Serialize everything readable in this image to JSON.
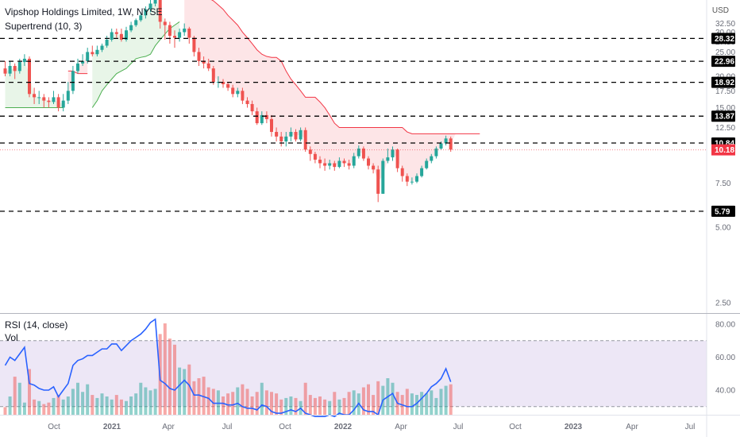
{
  "header": {
    "title": "Vipshop Holdings Limited, 1W, NYSE",
    "indicator": "Supertrend (10, 3)",
    "currency": "USD"
  },
  "rsi_panel": {
    "label": "RSI (14, close)",
    "vol_label": "Vol"
  },
  "colors": {
    "up": "#26a69a",
    "down": "#ef5350",
    "rsi_line": "#2962ff",
    "supertrend_up": "#4caf50",
    "supertrend_down": "#f23645",
    "level_line": "#000000",
    "price_line": "#f23645",
    "rsi_band": "#ede7f6"
  },
  "chart_data": [
    {
      "type": "candlestick",
      "title": "Vipshop Holdings Limited, 1W, NYSE",
      "scale": "log",
      "ylim": [
        2.5,
        35
      ],
      "y_ticks": [
        2.5,
        5.0,
        7.5,
        10.0,
        12.5,
        15.0,
        17.5,
        20.0,
        22.5,
        25.0,
        27.5,
        30.0,
        32.5
      ],
      "x_ticks": [
        "Oct",
        "2021",
        "Apr",
        "Jul",
        "Oct",
        "2022",
        "Apr",
        "Jul",
        "Oct",
        "2023",
        "Apr",
        "Jul"
      ],
      "horizontal_levels": [
        28.32,
        22.96,
        18.92,
        13.87,
        10.84,
        5.79
      ],
      "last_price": 10.18,
      "candles": [
        [
          21.5,
          20.5,
          23.0,
          20.0
        ],
        [
          20.5,
          22.0,
          23.0,
          20.0
        ],
        [
          22.0,
          21.0,
          22.5,
          19.5
        ],
        [
          21.0,
          22.8,
          23.5,
          20.5
        ],
        [
          22.8,
          23.5,
          24.5,
          22.0
        ],
        [
          23.5,
          17.0,
          24.0,
          16.5
        ],
        [
          17.0,
          16.5,
          18.0,
          15.5
        ],
        [
          16.5,
          16.5,
          17.5,
          15.5
        ],
        [
          16.5,
          16.0,
          17.0,
          15.0
        ],
        [
          16.0,
          15.8,
          16.5,
          15.0
        ],
        [
          15.8,
          16.5,
          17.5,
          15.5
        ],
        [
          16.5,
          15.0,
          17.0,
          14.5
        ],
        [
          15.0,
          16.0,
          17.0,
          14.5
        ],
        [
          16.0,
          17.5,
          19.0,
          15.5
        ],
        [
          17.5,
          21.0,
          22.0,
          17.0
        ],
        [
          21.0,
          22.5,
          23.5,
          20.5
        ],
        [
          22.5,
          23.0,
          24.5,
          22.0
        ],
        [
          23.0,
          25.0,
          26.0,
          22.5
        ],
        [
          25.0,
          24.5,
          26.5,
          24.0
        ],
        [
          24.5,
          25.5,
          26.5,
          24.0
        ],
        [
          25.5,
          26.5,
          27.0,
          25.0
        ],
        [
          26.5,
          28.0,
          29.0,
          26.0
        ],
        [
          28.0,
          30.0,
          31.0,
          27.5
        ],
        [
          30.0,
          29.5,
          31.0,
          28.5
        ],
        [
          29.5,
          28.0,
          31.0,
          27.5
        ],
        [
          28.0,
          30.5,
          31.5,
          27.5
        ],
        [
          30.5,
          32.0,
          33.0,
          30.0
        ],
        [
          32.0,
          33.5,
          34.0,
          31.5
        ],
        [
          33.5,
          35.0,
          36.0,
          33.0
        ],
        [
          35.0,
          37.0,
          38.0,
          34.0
        ],
        [
          37.0,
          39.0,
          42.0,
          36.0
        ],
        [
          39.0,
          42.0,
          46.0,
          38.0
        ],
        [
          42.0,
          33.0,
          43.0,
          31.0
        ],
        [
          33.0,
          32.0,
          34.0,
          28.0
        ],
        [
          32.0,
          29.0,
          33.0,
          27.0
        ],
        [
          29.0,
          28.5,
          30.5,
          26.0
        ],
        [
          28.5,
          30.0,
          31.0,
          27.5
        ],
        [
          30.0,
          31.0,
          32.5,
          29.0
        ],
        [
          31.0,
          28.5,
          31.5,
          27.0
        ],
        [
          28.5,
          25.0,
          29.0,
          24.0
        ],
        [
          25.0,
          23.0,
          26.0,
          22.0
        ],
        [
          23.0,
          22.5,
          24.0,
          21.5
        ],
        [
          22.5,
          21.5,
          23.5,
          21.0
        ],
        [
          21.5,
          19.0,
          22.0,
          18.5
        ],
        [
          19.0,
          19.0,
          20.0,
          18.0
        ],
        [
          19.0,
          18.6,
          19.5,
          18.0
        ],
        [
          18.6,
          18.0,
          19.0,
          17.5
        ],
        [
          18.0,
          17.0,
          18.5,
          16.5
        ],
        [
          17.0,
          17.5,
          18.0,
          16.5
        ],
        [
          17.5,
          16.0,
          18.0,
          15.5
        ],
        [
          16.0,
          15.5,
          16.5,
          15.0
        ],
        [
          15.5,
          14.5,
          16.0,
          14.0
        ],
        [
          14.5,
          13.0,
          15.0,
          12.8
        ],
        [
          13.0,
          14.0,
          14.5,
          12.8
        ],
        [
          14.0,
          13.5,
          14.5,
          13.0
        ],
        [
          13.5,
          12.0,
          14.0,
          11.5
        ],
        [
          12.0,
          11.5,
          12.5,
          11.0
        ],
        [
          11.5,
          11.0,
          12.0,
          10.5
        ],
        [
          11.0,
          11.5,
          12.0,
          10.5
        ],
        [
          11.5,
          12.0,
          12.5,
          11.0
        ],
        [
          12.0,
          11.2,
          12.3,
          11.0
        ],
        [
          11.2,
          12.2,
          12.5,
          11.0
        ],
        [
          12.2,
          10.2,
          12.5,
          10.0
        ],
        [
          10.2,
          9.8,
          10.5,
          9.2
        ],
        [
          9.8,
          9.3,
          10.0,
          9.0
        ],
        [
          9.3,
          9.0,
          9.6,
          8.6
        ],
        [
          9.0,
          8.8,
          9.4,
          8.4
        ],
        [
          8.8,
          9.0,
          9.3,
          8.5
        ],
        [
          9.0,
          8.7,
          9.2,
          8.4
        ],
        [
          8.7,
          9.2,
          9.5,
          8.6
        ],
        [
          9.2,
          9.0,
          9.4,
          8.7
        ],
        [
          9.0,
          8.8,
          9.3,
          8.5
        ],
        [
          8.8,
          9.6,
          9.9,
          8.6
        ],
        [
          9.6,
          10.3,
          10.6,
          9.4
        ],
        [
          10.3,
          9.4,
          10.5,
          9.2
        ],
        [
          9.4,
          8.8,
          9.6,
          8.5
        ],
        [
          8.8,
          8.5,
          9.0,
          8.2
        ],
        [
          8.5,
          6.8,
          8.8,
          6.3
        ],
        [
          6.8,
          9.2,
          9.4,
          6.8
        ],
        [
          9.2,
          9.5,
          10.3,
          9.0
        ],
        [
          9.5,
          10.2,
          10.5,
          9.2
        ],
        [
          10.2,
          8.6,
          10.3,
          8.3
        ],
        [
          8.6,
          8.0,
          8.8,
          7.6
        ],
        [
          8.0,
          7.6,
          8.2,
          7.3
        ],
        [
          7.6,
          7.6,
          7.9,
          7.4
        ],
        [
          7.6,
          8.0,
          8.2,
          7.5
        ],
        [
          8.0,
          8.6,
          8.8,
          7.9
        ],
        [
          8.6,
          9.2,
          9.4,
          8.5
        ],
        [
          9.2,
          9.6,
          9.8,
          9.0
        ],
        [
          9.6,
          10.3,
          10.5,
          9.4
        ],
        [
          10.3,
          10.8,
          11.0,
          10.2
        ],
        [
          10.8,
          11.3,
          11.6,
          10.6
        ],
        [
          11.3,
          10.2,
          11.5,
          10.0
        ]
      ],
      "supertrend": [
        {
          "trend": "up",
          "values": [
            15.0,
            15.0,
            15.0,
            15.0,
            15.0,
            15.0,
            15.0,
            15.0,
            15.0,
            15.0,
            15.0,
            15.0,
            15.0
          ]
        },
        {
          "trend": "down",
          "values": [
            21.0,
            21.0,
            20.5,
            20.5,
            20.5
          ]
        },
        {
          "trend": "up",
          "values": [
            15.0,
            16.0,
            17.5,
            18.5,
            19.5,
            20.5,
            21.0,
            21.5,
            22.5,
            23.5,
            23.8,
            24.0,
            24.5,
            26.5,
            28.0,
            29.5,
            31.0,
            32.0,
            33.0
          ]
        },
        {
          "trend": "down",
          "values": [
            42.0,
            42.0,
            42.0,
            42.0,
            42.0,
            41.0,
            40.0,
            38.5,
            37.0,
            35.0,
            33.5,
            32.0,
            30.0,
            28.5,
            27.0,
            25.5,
            24.5,
            24.0,
            23.8,
            23.8,
            23.0,
            21.0,
            19.5,
            18.5,
            17.5,
            16.5,
            16.5,
            16.5,
            15.8,
            15.0,
            14.0,
            13.0,
            12.5,
            12.5,
            12.5,
            12.5,
            12.5,
            12.5,
            12.5,
            12.5,
            12.5,
            12.5,
            12.5,
            12.5,
            12.5,
            12.5,
            12.0,
            11.8,
            11.8,
            11.8,
            11.8,
            11.8,
            11.8,
            11.8,
            11.8,
            11.8,
            11.8,
            11.8,
            11.8,
            11.8,
            11.8,
            11.8
          ]
        }
      ]
    },
    {
      "type": "line",
      "title": "RSI (14, close)",
      "ylim": [
        20,
        85
      ],
      "y_ticks": [
        40.0,
        60.0,
        80.0
      ],
      "band": [
        30,
        70
      ],
      "series": [
        {
          "name": "RSI (14, close)",
          "values": [
            55,
            60,
            58,
            62,
            66,
            44,
            43,
            41,
            40,
            40,
            42,
            36,
            40,
            44,
            55,
            58,
            59,
            61,
            61,
            63,
            65,
            65,
            68,
            68,
            64,
            67,
            70,
            72,
            74,
            77,
            81,
            83,
            46,
            44,
            41,
            40,
            43,
            46,
            43,
            37,
            37,
            36,
            35,
            32,
            32,
            32,
            31,
            31,
            32,
            30,
            29,
            29,
            28,
            31,
            30,
            27,
            26,
            26,
            27,
            28,
            27,
            29,
            26,
            25,
            24,
            24,
            24,
            25,
            24,
            26,
            25,
            25,
            28,
            32,
            28,
            27,
            27,
            25,
            34,
            36,
            38,
            32,
            31,
            30,
            30,
            32,
            35,
            38,
            42,
            44,
            47,
            53,
            45
          ]
        }
      ]
    },
    {
      "type": "bar",
      "title": "Vol",
      "series": [
        {
          "name": "Vol",
          "values": [
            5,
            12,
            25,
            21,
            8,
            30,
            10,
            9,
            7,
            8,
            11,
            13,
            10,
            12,
            17,
            21,
            15,
            20,
            13,
            11,
            14,
            12,
            10,
            13,
            10,
            9,
            12,
            14,
            21,
            18,
            16,
            17,
            53,
            60,
            50,
            46,
            31,
            30,
            33,
            22,
            24,
            25,
            18,
            17,
            16,
            12,
            14,
            15,
            18,
            20,
            17,
            12,
            15,
            21,
            16,
            15,
            14,
            10,
            11,
            12,
            11,
            9,
            21,
            13,
            11,
            12,
            10,
            9,
            15,
            10,
            11,
            15,
            16,
            14,
            18,
            20,
            13,
            22,
            19,
            24,
            21,
            15,
            13,
            17,
            14,
            13,
            15,
            14,
            16,
            11,
            17,
            19,
            20
          ]
        }
      ]
    }
  ]
}
